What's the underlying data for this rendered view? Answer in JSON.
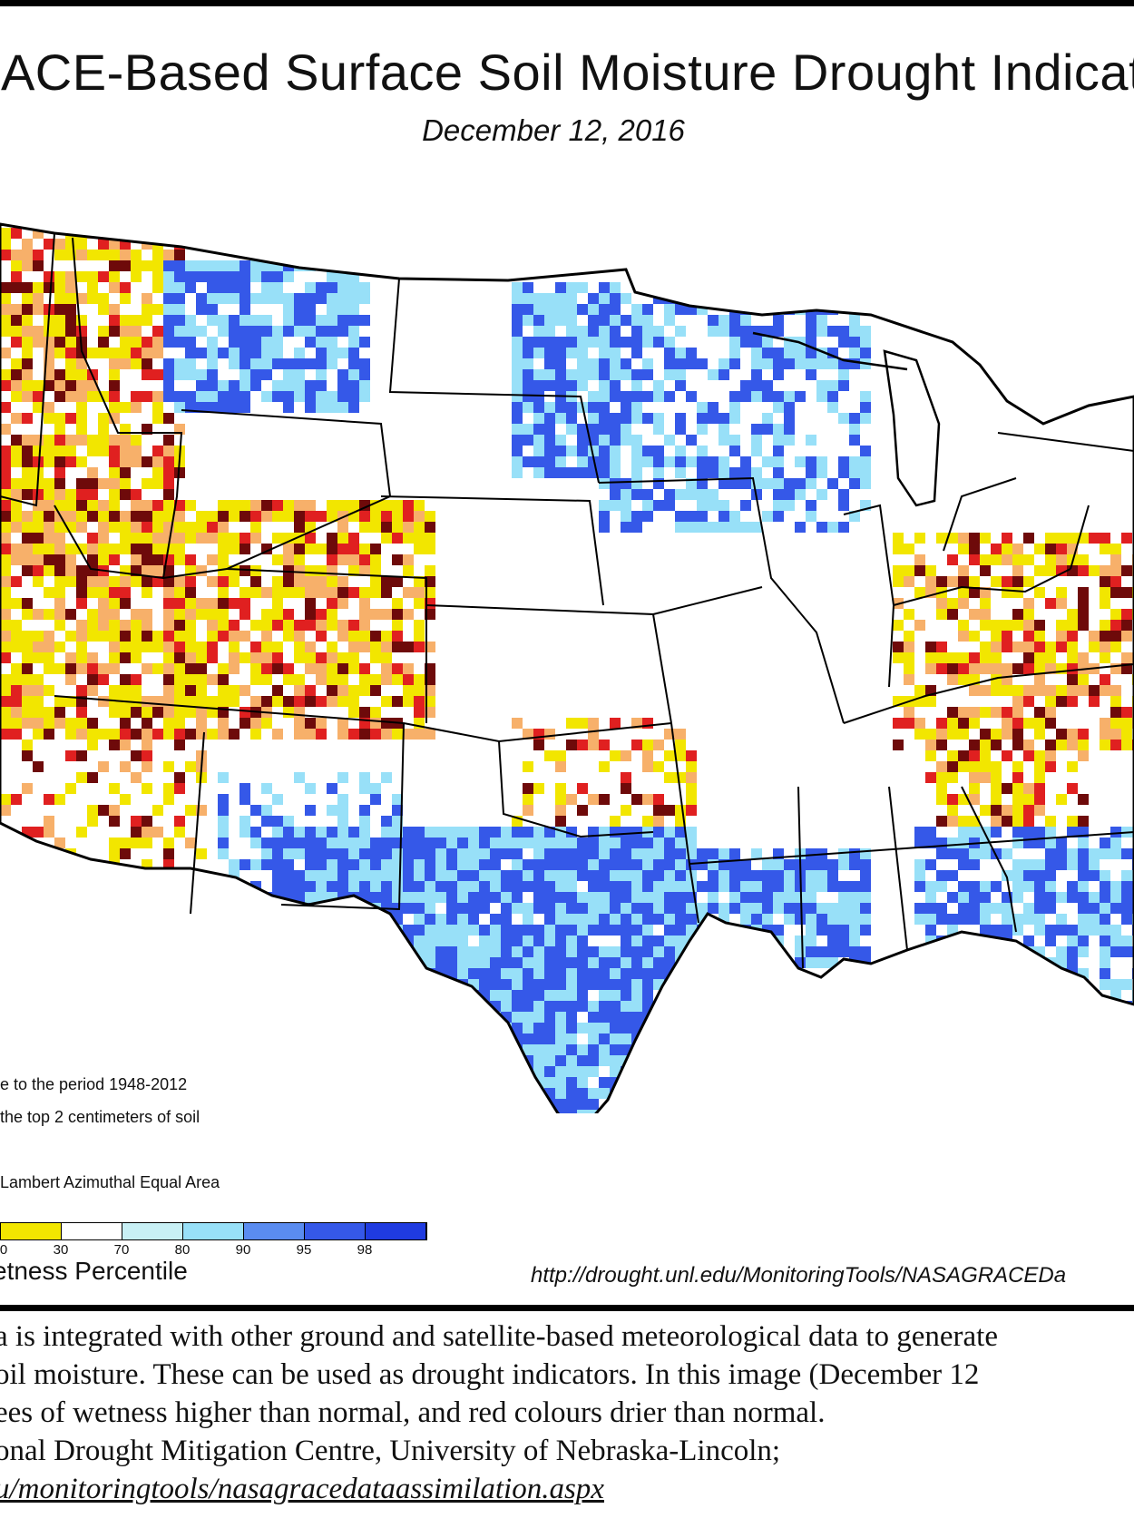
{
  "figure": {
    "title": "RACE-Based Surface Soil  Moisture Drought Indicat",
    "date": "December 12, 2016",
    "notes": [
      "e to the period 1948-2012",
      " the top 2 centimeters of soil",
      "Lambert Azimuthal Equal Area"
    ],
    "legend": {
      "title": "etness Percentile",
      "colors": [
        "#f2e600",
        "#ffffff",
        "#c8f0f5",
        "#98e0f8",
        "#5a8cf0",
        "#3558e8",
        "#1f3be0"
      ],
      "tick_labels": [
        "0",
        "30",
        "70",
        "80",
        "90",
        "95",
        "98"
      ]
    },
    "source_url": "http://drought.unl.edu/MonitoringTools/NASAGRACEDa",
    "category_colors": {
      "extreme_dry": "#6e0a0a",
      "very_dry": "#e02020",
      "dry": "#f7b06a",
      "moderately_dry": "#f2e600",
      "normal": "#ffffff",
      "wet": "#98e0f8",
      "very_wet": "#3558e8"
    }
  },
  "caption": {
    "lines": [
      "a is integrated with other ground and satellite-based meteorological data to generate",
      "oil moisture.  These can be used as drought indicators.  In this image (December 12",
      "ees of wetness higher than normal, and red colours drier than normal.",
      "onal Drought Mitigation Centre, University of Nebraska-Lincoln;"
    ],
    "link": "u/monitoringtools/nasagracedataassimilation.aspx"
  }
}
